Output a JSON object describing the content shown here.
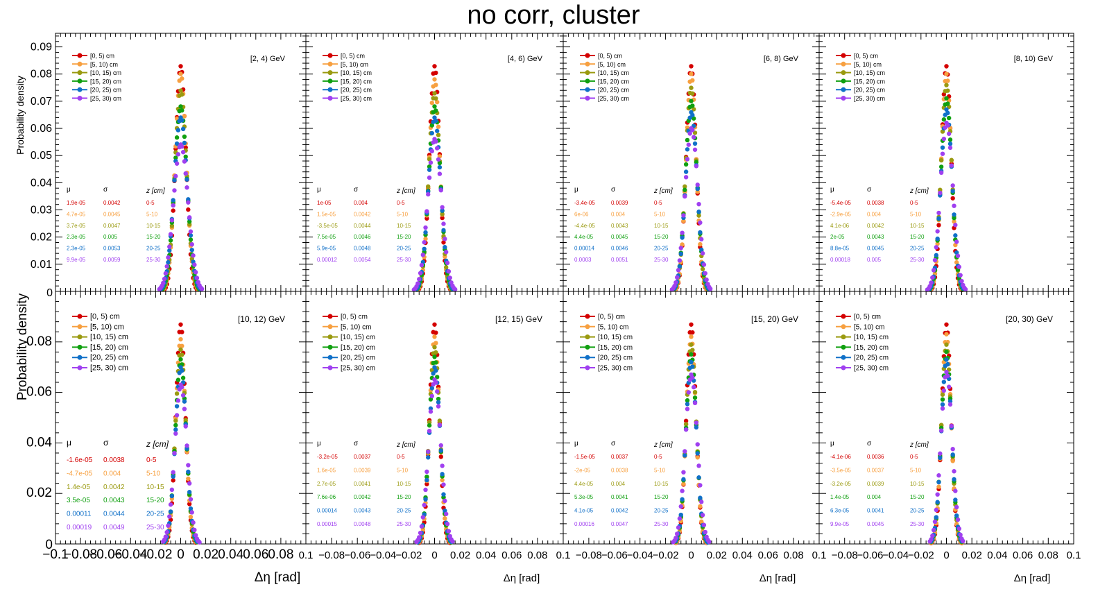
{
  "title": "no corr, cluster",
  "colors": {
    "z0_5": "#d40000",
    "z5_10": "#f7a040",
    "z10_15": "#9a9a10",
    "z15_20": "#10a010",
    "z20_25": "#1070c8",
    "z25_30": "#a040f0"
  },
  "chart_data": {
    "type": "scatter",
    "ylabel": "Probability density",
    "xlabel": "Δη  [rad]",
    "legend": [
      "[0, 5) cm",
      "[5, 10) cm",
      "[10, 15) cm",
      "[15, 20) cm",
      "[20, 25) cm",
      "[25, 30) cm"
    ],
    "stats_headers": [
      "μ",
      "σ",
      "z [cm]"
    ],
    "z_labels": [
      "0-5",
      "5-10",
      "10-15",
      "15-20",
      "20-25",
      "25-30"
    ],
    "rows": [
      {
        "ylim": [
          0,
          0.095
        ],
        "yticks": [
          0.01,
          0.02,
          0.03,
          0.04,
          0.05,
          0.06,
          0.07,
          0.08,
          0.09
        ],
        "yticklabels": [
          "0.01",
          "0.02",
          "0.03",
          "0.04",
          "0.05",
          "0.06",
          "0.07",
          "0.08",
          "0.09"
        ],
        "panels": [
          {
            "bin": "[2, 4) GeV",
            "peaks": [
              0.083,
              0.08,
              0.074,
              0.068,
              0.064,
              0.054
            ],
            "mu": [
              "1.9e-05",
              "4.7e-05",
              "3.7e-05",
              "2.3e-05",
              "2.3e-05",
              "9.9e-05"
            ],
            "sigma": [
              "0.0042",
              "0.0045",
              "0.0047",
              "0.005",
              "0.0053",
              "0.0059"
            ]
          },
          {
            "bin": "[4, 6) GeV",
            "peaks": [
              0.083,
              0.078,
              0.073,
              0.068,
              0.064,
              0.056
            ],
            "mu": [
              "1e-05",
              "1.5e-05",
              "-3.5e-05",
              "7.5e-05",
              "5.9e-05",
              "0.00012"
            ],
            "sigma": [
              "0.004",
              "0.0042",
              "0.0044",
              "0.0046",
              "0.0048",
              "0.0054"
            ]
          },
          {
            "bin": "[6, 8) GeV",
            "peaks": [
              0.083,
              0.08,
              0.075,
              0.07,
              0.066,
              0.06
            ],
            "mu": [
              "-3.4e-05",
              "6e-06",
              "-4.4e-05",
              "4.4e-05",
              "0.00014",
              "0.0003"
            ],
            "sigma": [
              "0.0039",
              "0.004",
              "0.0043",
              "0.0045",
              "0.0046",
              "0.0051"
            ]
          },
          {
            "bin": "[8, 10) GeV",
            "peaks": [
              0.083,
              0.08,
              0.076,
              0.071,
              0.067,
              0.062
            ],
            "mu": [
              "-5.4e-05",
              "-2.9e-05",
              "4.1e-06",
              "2e-05",
              "8.8e-05",
              "0.00018"
            ],
            "sigma": [
              "0.0038",
              "0.004",
              "0.0042",
              "0.0043",
              "0.0045",
              "0.005"
            ]
          }
        ]
      },
      {
        "ylim": [
          0,
          0.1
        ],
        "yticks": [
          0.02,
          0.04,
          0.06,
          0.08
        ],
        "yticklabels": [
          "0.02",
          "0.04",
          "0.06",
          "0.08"
        ],
        "panels": [
          {
            "bin": "[10, 12) GeV",
            "peaks": [
              0.087,
              0.081,
              0.077,
              0.073,
              0.07,
              0.063
            ],
            "mu": [
              "-1.6e-05",
              "-4.7e-05",
              "1.4e-05",
              "3.5e-05",
              "0.00011",
              "0.00019"
            ],
            "sigma": [
              "0.0038",
              "0.004",
              "0.0042",
              "0.0043",
              "0.0044",
              "0.0049"
            ]
          },
          {
            "bin": "[12, 15) GeV",
            "peaks": [
              0.087,
              0.082,
              0.078,
              0.074,
              0.07,
              0.065
            ],
            "mu": [
              "-3.2e-05",
              "1.6e-05",
              "2.7e-05",
              "7.6e-06",
              "0.00014",
              "0.00015"
            ],
            "sigma": [
              "0.0037",
              "0.0039",
              "0.0041",
              "0.0042",
              "0.0043",
              "0.0048"
            ]
          },
          {
            "bin": "[15, 20) GeV",
            "peaks": [
              0.087,
              0.082,
              0.079,
              0.075,
              0.072,
              0.067
            ],
            "mu": [
              "-1.5e-05",
              "-2e-05",
              "4.4e-05",
              "5.3e-05",
              "4.1e-05",
              "0.00016"
            ],
            "sigma": [
              "0.0037",
              "0.0038",
              "0.004",
              "0.0041",
              "0.0042",
              "0.0047"
            ]
          },
          {
            "bin": "[20, 30) GeV",
            "peaks": [
              0.087,
              0.083,
              0.079,
              0.076,
              0.073,
              0.068
            ],
            "mu": [
              "-4.1e-06",
              "-3.5e-05",
              "-3.2e-05",
              "1.4e-05",
              "6.3e-05",
              "9.9e-05"
            ],
            "sigma": [
              "0.0036",
              "0.0037",
              "0.0039",
              "0.004",
              "0.0041",
              "0.0045"
            ]
          }
        ]
      }
    ],
    "xlim": [
      -0.1,
      0.1
    ],
    "xtick_labels_first": [
      "−0.1",
      "−0.08",
      "−0.06",
      "−0.04",
      "−0.02",
      "0",
      "0.02",
      "0.04",
      "0.06",
      "0.08"
    ],
    "xtick_labels_rest": [
      "0.1",
      "−0.08",
      "−0.06",
      "−0.04",
      "−0.02",
      "0",
      "0.02",
      "0.04",
      "0.06",
      "0.08"
    ],
    "xtick_label_last": "0.1",
    "zero_label": "0"
  }
}
